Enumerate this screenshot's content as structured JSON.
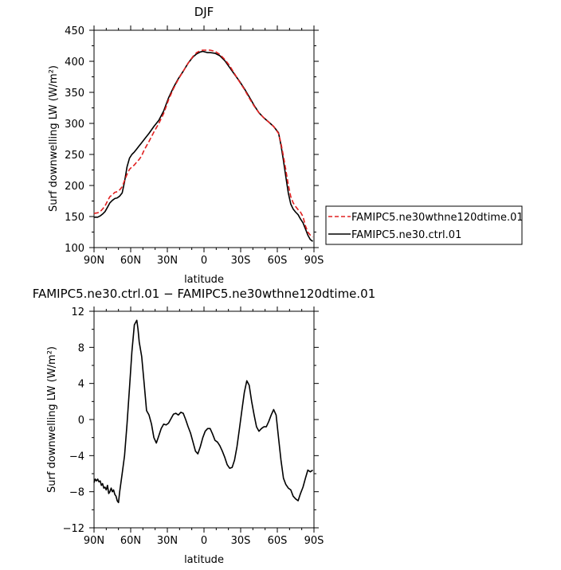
{
  "chart_data": [
    {
      "type": "line",
      "title": "DJF",
      "xlabel": "latitude",
      "ylabel": "Surf downwelling LW (W/m²)",
      "xlim": [
        90,
        -90
      ],
      "ylim": [
        100,
        450
      ],
      "x_ticks": [
        90,
        60,
        30,
        0,
        -30,
        -60,
        -90
      ],
      "x_tick_labels": [
        "90N",
        "60N",
        "30N",
        "0",
        "30S",
        "60S",
        "90S"
      ],
      "y_ticks": [
        100,
        150,
        200,
        250,
        300,
        350,
        400,
        450
      ],
      "y_tick_labels": [
        "100",
        "150",
        "200",
        "250",
        "300",
        "350",
        "400",
        "450"
      ],
      "legend_position": "right",
      "series": [
        {
          "name": "FAMIPC5.ne30wthne120dtime.01",
          "color": "#e02020",
          "dash": "dashed",
          "x": [
            90,
            87,
            85,
            83,
            81,
            79,
            77,
            75,
            73,
            71,
            69,
            67,
            65,
            63,
            61,
            59,
            57,
            55,
            53,
            51,
            49,
            45,
            41,
            37,
            33,
            29,
            25,
            21,
            17,
            13,
            9,
            6,
            3,
            1,
            -1,
            -3,
            -5,
            -9,
            -13,
            -17,
            -21,
            -25,
            -29,
            -33,
            -37,
            -41,
            -45,
            -49,
            -53,
            -57,
            -61,
            -63,
            -65,
            -67,
            -69,
            -71,
            -73,
            -75,
            -77,
            -79,
            -81,
            -83,
            -85,
            -87,
            -89
          ],
          "y": [
            155,
            156,
            158,
            162,
            167,
            175,
            182,
            185,
            189,
            190,
            193,
            198,
            208,
            218,
            226,
            230,
            233,
            238,
            242,
            248,
            257,
            271,
            286,
            300,
            316,
            338,
            356,
            371,
            384,
            397,
            408,
            414,
            417,
            418,
            418,
            418,
            418,
            416,
            411,
            403,
            393,
            380,
            367,
            355,
            341,
            328,
            317,
            309,
            302,
            295,
            284,
            268,
            247,
            225,
            201,
            182,
            172,
            166,
            161,
            157,
            150,
            135,
            125,
            120,
            117
          ]
        },
        {
          "name": "FAMIPC5.ne30.ctrl.01",
          "color": "#000000",
          "dash": "solid",
          "x": [
            90,
            87,
            85,
            83,
            81,
            79,
            77,
            75,
            73,
            71,
            69,
            67,
            65,
            63,
            61,
            59,
            57,
            55,
            53,
            51,
            49,
            45,
            41,
            37,
            33,
            29,
            25,
            21,
            17,
            13,
            9,
            6,
            3,
            1,
            -1,
            -3,
            -5,
            -9,
            -13,
            -17,
            -21,
            -25,
            -29,
            -33,
            -37,
            -41,
            -45,
            -49,
            -53,
            -57,
            -61,
            -63,
            -65,
            -67,
            -69,
            -71,
            -73,
            -75,
            -77,
            -79,
            -81,
            -83,
            -85,
            -87,
            -89
          ],
          "y": [
            149,
            149,
            151,
            154,
            158,
            165,
            172,
            176,
            179,
            180,
            183,
            188,
            206,
            230,
            244,
            250,
            254,
            259,
            264,
            269,
            274,
            284,
            295,
            305,
            320,
            341,
            358,
            372,
            384,
            397,
            407,
            412,
            415,
            416,
            415,
            414,
            414,
            413,
            409,
            401,
            390,
            379,
            368,
            356,
            343,
            329,
            317,
            309,
            302,
            295,
            285,
            265,
            240,
            214,
            188,
            170,
            162,
            157,
            153,
            146,
            140,
            130,
            120,
            113,
            110
          ]
        }
      ]
    },
    {
      "type": "line",
      "title": "FAMIPC5.ne30.ctrl.01 − FAMIPC5.ne30wthne120dtime.01",
      "xlabel": "latitude",
      "ylabel": "Surf downwelling LW (W/m²)",
      "xlim": [
        90,
        -90
      ],
      "ylim": [
        -12,
        12
      ],
      "x_ticks": [
        90,
        60,
        30,
        0,
        -30,
        -60,
        -90
      ],
      "x_tick_labels": [
        "90N",
        "60N",
        "30N",
        "0",
        "30S",
        "60S",
        "90S"
      ],
      "y_ticks": [
        -12,
        -8,
        -4,
        0,
        4,
        8,
        12
      ],
      "y_tick_labels": [
        "−12",
        "−8",
        "−4",
        "0",
        "4",
        "8",
        "12"
      ],
      "series": [
        {
          "color": "#000000",
          "dash": "solid",
          "x": [
            90,
            89,
            88,
            87,
            86,
            85,
            84,
            83,
            82,
            81,
            80,
            79,
            78,
            77,
            76,
            75,
            74,
            73,
            72,
            71,
            70,
            69,
            67,
            65,
            63,
            61,
            59,
            57,
            55,
            54,
            53,
            51,
            49,
            47,
            45,
            43,
            41,
            39,
            37,
            35,
            33,
            31,
            29,
            27,
            25,
            23,
            21,
            19,
            17,
            15,
            13,
            11,
            9,
            7,
            5,
            3,
            1,
            -1,
            -3,
            -5,
            -7,
            -9,
            -11,
            -13,
            -15,
            -17,
            -19,
            -21,
            -23,
            -25,
            -27,
            -29,
            -31,
            -33,
            -35,
            -37,
            -39,
            -41,
            -43,
            -45,
            -47,
            -49,
            -51,
            -53,
            -55,
            -57,
            -59,
            -61,
            -63,
            -65,
            -67,
            -69,
            -71,
            -73,
            -75,
            -77,
            -79,
            -81,
            -83,
            -85,
            -87,
            -89
          ],
          "y": [
            -7.0,
            -6.6,
            -6.8,
            -6.6,
            -6.9,
            -6.8,
            -7.3,
            -7.1,
            -7.6,
            -7.5,
            -7.8,
            -7.3,
            -8.2,
            -8.0,
            -7.6,
            -8.0,
            -7.8,
            -8.3,
            -8.5,
            -9.0,
            -9.2,
            -8.0,
            -6.0,
            -4.0,
            -0.5,
            3.5,
            7.5,
            10.5,
            11.0,
            10.0,
            8.6,
            7.0,
            4.0,
            1.0,
            0.5,
            -0.5,
            -2.0,
            -2.6,
            -1.8,
            -1.0,
            -0.5,
            -0.6,
            -0.4,
            0.1,
            0.6,
            0.7,
            0.5,
            0.8,
            0.7,
            0.0,
            -0.8,
            -1.5,
            -2.5,
            -3.5,
            -3.8,
            -3.0,
            -2.0,
            -1.3,
            -1.0,
            -1.0,
            -1.6,
            -2.3,
            -2.5,
            -2.9,
            -3.5,
            -4.2,
            -5.0,
            -5.4,
            -5.3,
            -4.5,
            -3.0,
            -1.0,
            1.0,
            3.0,
            4.3,
            3.8,
            2.0,
            0.5,
            -0.8,
            -1.3,
            -1.0,
            -0.8,
            -0.8,
            -0.2,
            0.5,
            1.1,
            0.5,
            -2.0,
            -4.5,
            -6.5,
            -7.2,
            -7.6,
            -7.8,
            -8.5,
            -8.8,
            -9.0,
            -8.2,
            -7.5,
            -6.5,
            -5.6,
            -5.8,
            -5.6
          ]
        }
      ]
    }
  ]
}
